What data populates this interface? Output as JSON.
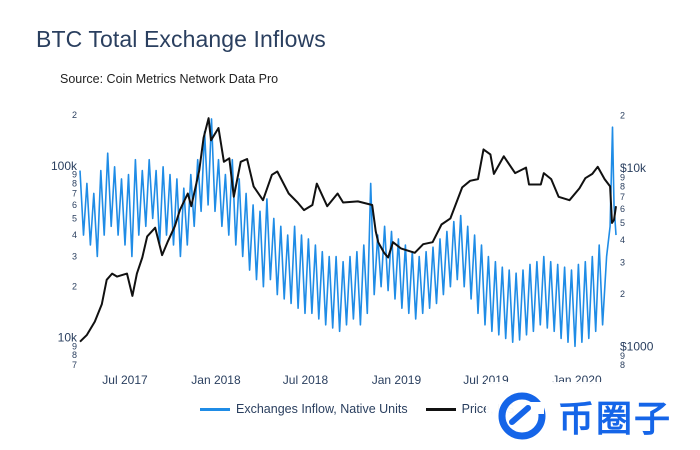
{
  "title": "BTC Total Exchange Inflows",
  "subtitle": "Source: Coin Metrics Network Data Pro",
  "colors": {
    "inflow": "#1f8ce6",
    "price": "#111111",
    "text": "#2a3f5f"
  },
  "legend": {
    "inflow_label": "Exchanges Inflow, Native Units",
    "price_label": "Price, US"
  },
  "watermark": {
    "text": "币圈子"
  },
  "chart_data": {
    "type": "line",
    "x_range": [
      "2017-04-01",
      "2020-03-20"
    ],
    "x_ticks": [
      {
        "date": "2017-07-01",
        "label": "Jul 2017"
      },
      {
        "date": "2018-01-01",
        "label": "Jan 2018"
      },
      {
        "date": "2018-07-01",
        "label": "Jul 2018"
      },
      {
        "date": "2019-01-01",
        "label": "Jan 2019"
      },
      {
        "date": "2019-07-01",
        "label": "Jul 2019"
      },
      {
        "date": "2020-01-01",
        "label": "Jan 2020"
      }
    ],
    "y_left": {
      "scale": "log",
      "range": [
        7000,
        220000
      ],
      "ticks": [
        {
          "v": 7000,
          "l": "7"
        },
        {
          "v": 8000,
          "l": "8"
        },
        {
          "v": 9000,
          "l": "9"
        },
        {
          "v": 10000,
          "l": "10k",
          "major": true
        },
        {
          "v": 20000,
          "l": "2"
        },
        {
          "v": 30000,
          "l": "3"
        },
        {
          "v": 40000,
          "l": "4"
        },
        {
          "v": 50000,
          "l": "5"
        },
        {
          "v": 60000,
          "l": "6"
        },
        {
          "v": 70000,
          "l": "7"
        },
        {
          "v": 80000,
          "l": "8"
        },
        {
          "v": 90000,
          "l": "9"
        },
        {
          "v": 100000,
          "l": "100k",
          "major": true
        },
        {
          "v": 200000,
          "l": "2"
        }
      ]
    },
    "y_right": {
      "scale": "log",
      "range": [
        800,
        22000
      ],
      "ticks": [
        {
          "v": 800,
          "l": "8"
        },
        {
          "v": 900,
          "l": "9"
        },
        {
          "v": 1000,
          "l": "$1000",
          "major": true
        },
        {
          "v": 2000,
          "l": "2"
        },
        {
          "v": 3000,
          "l": "3"
        },
        {
          "v": 4000,
          "l": "4"
        },
        {
          "v": 5000,
          "l": "5"
        },
        {
          "v": 6000,
          "l": "6"
        },
        {
          "v": 7000,
          "l": "7"
        },
        {
          "v": 8000,
          "l": "8"
        },
        {
          "v": 9000,
          "l": "9"
        },
        {
          "v": 10000,
          "l": "$10k",
          "major": true
        },
        {
          "v": 20000,
          "l": "2"
        }
      ]
    },
    "series": [
      {
        "name": "Exchanges Inflow, Native Units",
        "axis": "left",
        "color": "#1f8ce6",
        "points": [
          [
            "2017-04-01",
            95000
          ],
          [
            "2017-04-08",
            40000
          ],
          [
            "2017-04-15",
            80000
          ],
          [
            "2017-04-22",
            35000
          ],
          [
            "2017-04-29",
            70000
          ],
          [
            "2017-05-06",
            30000
          ],
          [
            "2017-05-13",
            95000
          ],
          [
            "2017-05-20",
            40000
          ],
          [
            "2017-05-27",
            120000
          ],
          [
            "2017-06-03",
            45000
          ],
          [
            "2017-06-10",
            100000
          ],
          [
            "2017-06-17",
            40000
          ],
          [
            "2017-06-24",
            85000
          ],
          [
            "2017-07-01",
            35000
          ],
          [
            "2017-07-08",
            90000
          ],
          [
            "2017-07-15",
            30000
          ],
          [
            "2017-07-22",
            110000
          ],
          [
            "2017-07-29",
            40000
          ],
          [
            "2017-08-05",
            95000
          ],
          [
            "2017-08-12",
            45000
          ],
          [
            "2017-08-19",
            110000
          ],
          [
            "2017-08-26",
            50000
          ],
          [
            "2017-09-02",
            95000
          ],
          [
            "2017-09-09",
            35000
          ],
          [
            "2017-09-16",
            100000
          ],
          [
            "2017-09-23",
            40000
          ],
          [
            "2017-09-30",
            90000
          ],
          [
            "2017-10-07",
            35000
          ],
          [
            "2017-10-14",
            85000
          ],
          [
            "2017-10-21",
            30000
          ],
          [
            "2017-10-28",
            75000
          ],
          [
            "2017-11-04",
            35000
          ],
          [
            "2017-11-11",
            90000
          ],
          [
            "2017-11-18",
            45000
          ],
          [
            "2017-11-25",
            110000
          ],
          [
            "2017-12-02",
            55000
          ],
          [
            "2017-12-09",
            160000
          ],
          [
            "2017-12-16",
            60000
          ],
          [
            "2017-12-23",
            190000
          ],
          [
            "2017-12-30",
            55000
          ],
          [
            "2018-01-06",
            110000
          ],
          [
            "2018-01-13",
            45000
          ],
          [
            "2018-01-20",
            90000
          ],
          [
            "2018-01-27",
            40000
          ],
          [
            "2018-02-03",
            110000
          ],
          [
            "2018-02-10",
            35000
          ],
          [
            "2018-02-17",
            85000
          ],
          [
            "2018-02-24",
            30000
          ],
          [
            "2018-03-03",
            70000
          ],
          [
            "2018-03-10",
            25000
          ],
          [
            "2018-03-17",
            60000
          ],
          [
            "2018-03-24",
            22000
          ],
          [
            "2018-03-31",
            55000
          ],
          [
            "2018-04-07",
            20000
          ],
          [
            "2018-04-14",
            65000
          ],
          [
            "2018-04-21",
            22000
          ],
          [
            "2018-04-28",
            50000
          ],
          [
            "2018-05-05",
            18000
          ],
          [
            "2018-05-12",
            45000
          ],
          [
            "2018-05-19",
            17000
          ],
          [
            "2018-05-26",
            40000
          ],
          [
            "2018-06-02",
            16000
          ],
          [
            "2018-06-09",
            45000
          ],
          [
            "2018-06-16",
            15000
          ],
          [
            "2018-06-23",
            40000
          ],
          [
            "2018-06-30",
            14000
          ],
          [
            "2018-07-07",
            38000
          ],
          [
            "2018-07-14",
            14000
          ],
          [
            "2018-07-21",
            35000
          ],
          [
            "2018-07-28",
            13000
          ],
          [
            "2018-08-04",
            32000
          ],
          [
            "2018-08-11",
            12000
          ],
          [
            "2018-08-18",
            30000
          ],
          [
            "2018-08-25",
            11500
          ],
          [
            "2018-09-01",
            30000
          ],
          [
            "2018-09-08",
            11000
          ],
          [
            "2018-09-15",
            28000
          ],
          [
            "2018-09-22",
            12000
          ],
          [
            "2018-09-29",
            30000
          ],
          [
            "2018-10-06",
            13000
          ],
          [
            "2018-10-13",
            32000
          ],
          [
            "2018-10-20",
            12000
          ],
          [
            "2018-10-27",
            35000
          ],
          [
            "2018-11-03",
            14000
          ],
          [
            "2018-11-10",
            80000
          ],
          [
            "2018-11-17",
            18000
          ],
          [
            "2018-11-24",
            40000
          ],
          [
            "2018-12-01",
            20000
          ],
          [
            "2018-12-08",
            45000
          ],
          [
            "2018-12-15",
            19000
          ],
          [
            "2018-12-22",
            42000
          ],
          [
            "2018-12-29",
            17000
          ],
          [
            "2019-01-05",
            38000
          ],
          [
            "2019-01-12",
            15000
          ],
          [
            "2019-01-19",
            35000
          ],
          [
            "2019-01-26",
            14000
          ],
          [
            "2019-02-02",
            32000
          ],
          [
            "2019-02-09",
            13000
          ],
          [
            "2019-02-16",
            30000
          ],
          [
            "2019-02-23",
            14000
          ],
          [
            "2019-03-02",
            32000
          ],
          [
            "2019-03-09",
            15000
          ],
          [
            "2019-03-16",
            34000
          ],
          [
            "2019-03-23",
            16000
          ],
          [
            "2019-03-30",
            38000
          ],
          [
            "2019-04-06",
            18000
          ],
          [
            "2019-04-13",
            42000
          ],
          [
            "2019-04-20",
            20000
          ],
          [
            "2019-04-27",
            48000
          ],
          [
            "2019-05-04",
            22000
          ],
          [
            "2019-05-11",
            52000
          ],
          [
            "2019-05-18",
            20000
          ],
          [
            "2019-05-25",
            45000
          ],
          [
            "2019-06-01",
            17000
          ],
          [
            "2019-06-08",
            40000
          ],
          [
            "2019-06-15",
            14000
          ],
          [
            "2019-06-22",
            35000
          ],
          [
            "2019-06-29",
            12000
          ],
          [
            "2019-07-06",
            30000
          ],
          [
            "2019-07-13",
            11000
          ],
          [
            "2019-07-20",
            28000
          ],
          [
            "2019-07-27",
            10500
          ],
          [
            "2019-08-03",
            26000
          ],
          [
            "2019-08-10",
            10000
          ],
          [
            "2019-08-17",
            25000
          ],
          [
            "2019-08-24",
            9500
          ],
          [
            "2019-08-31",
            24000
          ],
          [
            "2019-09-07",
            9800
          ],
          [
            "2019-09-14",
            25000
          ],
          [
            "2019-09-21",
            10500
          ],
          [
            "2019-09-28",
            27000
          ],
          [
            "2019-10-05",
            11000
          ],
          [
            "2019-10-12",
            28000
          ],
          [
            "2019-10-19",
            12000
          ],
          [
            "2019-10-26",
            30000
          ],
          [
            "2019-11-02",
            11500
          ],
          [
            "2019-11-09",
            28000
          ],
          [
            "2019-11-16",
            11000
          ],
          [
            "2019-11-23",
            27000
          ],
          [
            "2019-11-30",
            10000
          ],
          [
            "2019-12-07",
            26000
          ],
          [
            "2019-12-14",
            9500
          ],
          [
            "2019-12-21",
            25000
          ],
          [
            "2019-12-28",
            9000
          ],
          [
            "2020-01-04",
            27000
          ],
          [
            "2020-01-11",
            9500
          ],
          [
            "2020-01-18",
            28000
          ],
          [
            "2020-01-25",
            10000
          ],
          [
            "2020-02-01",
            30000
          ],
          [
            "2020-02-08",
            11000
          ],
          [
            "2020-02-15",
            35000
          ],
          [
            "2020-02-22",
            12000
          ],
          [
            "2020-03-01",
            30000
          ],
          [
            "2020-03-08",
            45000
          ],
          [
            "2020-03-13",
            170000
          ],
          [
            "2020-03-16",
            60000
          ],
          [
            "2020-03-20",
            40000
          ]
        ]
      },
      {
        "name": "Price, US",
        "axis": "right",
        "color": "#111111",
        "points": [
          [
            "2017-04-01",
            1080
          ],
          [
            "2017-04-15",
            1180
          ],
          [
            "2017-05-01",
            1400
          ],
          [
            "2017-05-15",
            1750
          ],
          [
            "2017-05-25",
            2400
          ],
          [
            "2017-06-05",
            2600
          ],
          [
            "2017-06-15",
            2500
          ],
          [
            "2017-06-25",
            2550
          ],
          [
            "2017-07-05",
            2600
          ],
          [
            "2017-07-16",
            1950
          ],
          [
            "2017-07-25",
            2600
          ],
          [
            "2017-08-05",
            3200
          ],
          [
            "2017-08-15",
            4200
          ],
          [
            "2017-08-31",
            4700
          ],
          [
            "2017-09-14",
            3300
          ],
          [
            "2017-09-25",
            3900
          ],
          [
            "2017-10-10",
            4800
          ],
          [
            "2017-10-20",
            5900
          ],
          [
            "2017-11-05",
            7300
          ],
          [
            "2017-11-12",
            6200
          ],
          [
            "2017-11-28",
            9800
          ],
          [
            "2017-12-07",
            15000
          ],
          [
            "2017-12-17",
            19300
          ],
          [
            "2017-12-22",
            14500
          ],
          [
            "2018-01-06",
            17000
          ],
          [
            "2018-01-17",
            11000
          ],
          [
            "2018-01-28",
            11500
          ],
          [
            "2018-02-06",
            7000
          ],
          [
            "2018-02-20",
            11000
          ],
          [
            "2018-03-05",
            11400
          ],
          [
            "2018-03-18",
            8000
          ],
          [
            "2018-04-06",
            6700
          ],
          [
            "2018-04-24",
            9300
          ],
          [
            "2018-05-05",
            9700
          ],
          [
            "2018-05-28",
            7300
          ],
          [
            "2018-06-15",
            6500
          ],
          [
            "2018-06-28",
            5900
          ],
          [
            "2018-07-15",
            6300
          ],
          [
            "2018-07-24",
            8300
          ],
          [
            "2018-08-14",
            6200
          ],
          [
            "2018-09-04",
            7300
          ],
          [
            "2018-09-15",
            6500
          ],
          [
            "2018-10-15",
            6600
          ],
          [
            "2018-11-13",
            6300
          ],
          [
            "2018-11-20",
            4500
          ],
          [
            "2018-11-25",
            3900
          ],
          [
            "2018-12-07",
            3400
          ],
          [
            "2018-12-15",
            3200
          ],
          [
            "2018-12-25",
            3900
          ],
          [
            "2019-01-10",
            3600
          ],
          [
            "2019-02-07",
            3400
          ],
          [
            "2019-02-24",
            3800
          ],
          [
            "2019-03-15",
            3900
          ],
          [
            "2019-04-02",
            4900
          ],
          [
            "2019-04-20",
            5300
          ],
          [
            "2019-05-14",
            7900
          ],
          [
            "2019-05-30",
            8600
          ],
          [
            "2019-06-15",
            8800
          ],
          [
            "2019-06-26",
            12900
          ],
          [
            "2019-07-10",
            12100
          ],
          [
            "2019-07-17",
            9400
          ],
          [
            "2019-08-06",
            11800
          ],
          [
            "2019-08-29",
            9500
          ],
          [
            "2019-09-20",
            10200
          ],
          [
            "2019-09-26",
            8200
          ],
          [
            "2019-10-20",
            8200
          ],
          [
            "2019-10-26",
            9500
          ],
          [
            "2019-11-10",
            8800
          ],
          [
            "2019-11-25",
            7000
          ],
          [
            "2019-12-17",
            6700
          ],
          [
            "2020-01-06",
            7800
          ],
          [
            "2020-01-18",
            8900
          ],
          [
            "2020-02-01",
            9400
          ],
          [
            "2020-02-12",
            10300
          ],
          [
            "2020-02-26",
            8800
          ],
          [
            "2020-03-08",
            8000
          ],
          [
            "2020-03-12",
            5000
          ],
          [
            "2020-03-16",
            5200
          ],
          [
            "2020-03-20",
            6200
          ]
        ]
      }
    ]
  }
}
